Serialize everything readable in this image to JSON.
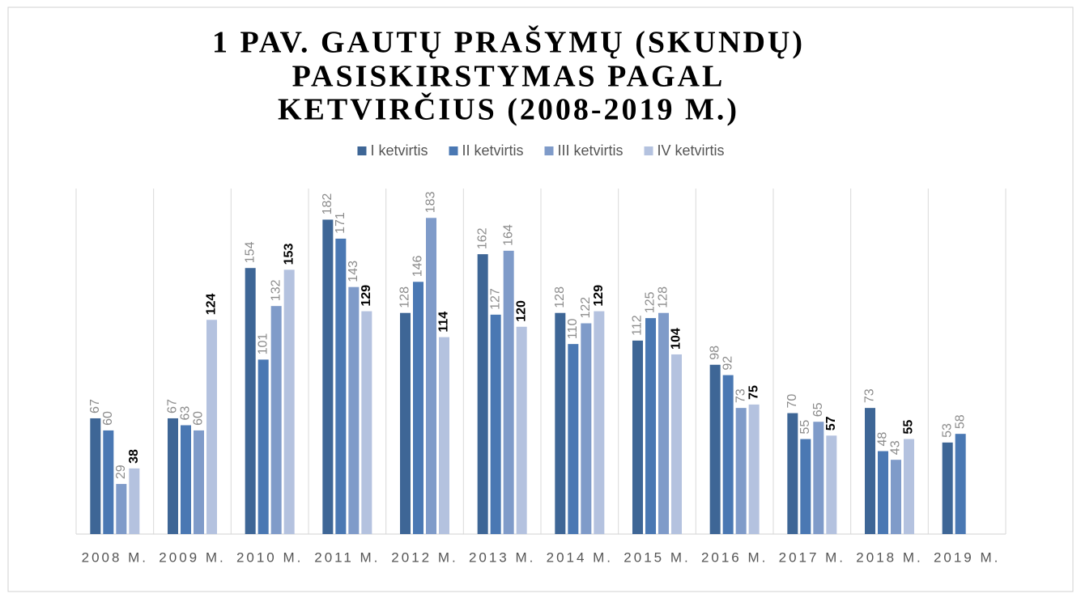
{
  "chart_data": {
    "type": "bar",
    "title": [
      "1 PAV. GAUTŲ PRAŠYMŲ (SKUNDŲ)",
      "PASISKIRSTYMAS PAGAL",
      "KETVIRČIUS (2008-2019 M.)"
    ],
    "categories": [
      "2008 M.",
      "2009 M.",
      "2010 M.",
      "2011 M.",
      "2012 M.",
      "2013 M.",
      "2014 M.",
      "2015 M.",
      "2016 M.",
      "2017 M.",
      "2018 M.",
      "2019 M."
    ],
    "series": [
      {
        "name": "I ketvirtis",
        "color": "#3e6696",
        "label_color": "#8c8c8c",
        "values": [
          67,
          67,
          154,
          182,
          128,
          162,
          128,
          112,
          98,
          70,
          73,
          53
        ]
      },
      {
        "name": "II ketvirtis",
        "color": "#4a78b3",
        "label_color": "#8c8c8c",
        "values": [
          60,
          63,
          101,
          171,
          146,
          127,
          110,
          125,
          92,
          55,
          48,
          58
        ]
      },
      {
        "name": "III ketvirtis",
        "color": "#7f9bc9",
        "label_color": "#8c8c8c",
        "values": [
          29,
          60,
          132,
          143,
          183,
          164,
          122,
          128,
          73,
          65,
          43,
          null
        ]
      },
      {
        "name": "IV ketvirtis",
        "color": "#b4c2df",
        "label_color": "#000000",
        "values": [
          38,
          124,
          153,
          129,
          114,
          120,
          129,
          104,
          75,
          57,
          55,
          null
        ]
      }
    ],
    "ylim": [
      0,
      200
    ],
    "legend": "top"
  }
}
